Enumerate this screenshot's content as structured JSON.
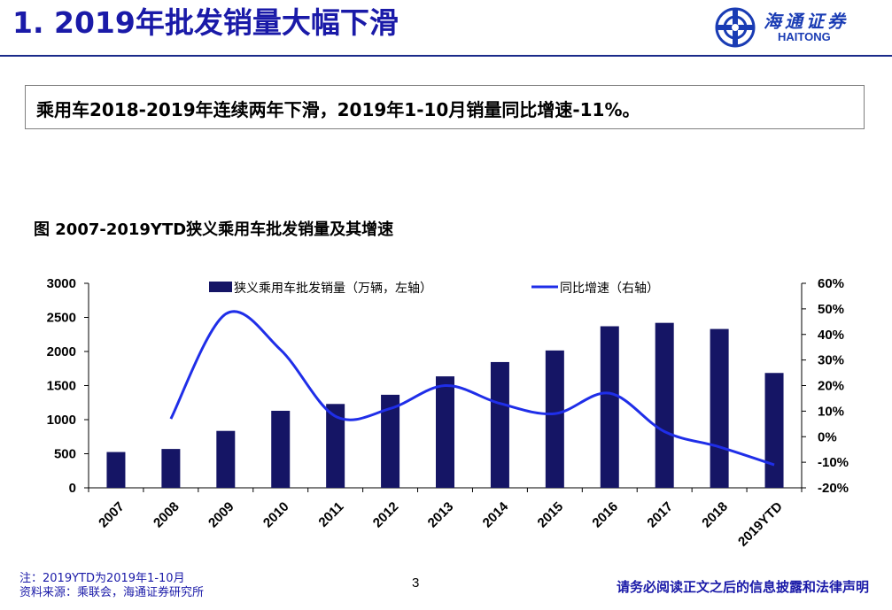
{
  "slide": {
    "title": "1. 2019年批发销量大幅下滑",
    "summary": "乘用车2018-2019年连续两年下滑，2019年1-10月销量同比增速-11%。",
    "figure_caption": "图 2007-2019YTD狭义乘用车批发销量及其增速",
    "note": "注：2019YTD为2019年1-10月",
    "source": "资料来源：乘联会，海通证券研究所",
    "page_number": "3",
    "disclaimer": "请务必阅读正文之后的信息披露和法律声明"
  },
  "logo": {
    "cn": "海通证券",
    "en": "HAITONG",
    "icon": "haitong-logo-icon"
  },
  "colors": {
    "title": "#1a1aa8",
    "bar": "#151565",
    "line": "#1f2ee8",
    "rule": "#1a2a8a"
  },
  "chart_data": {
    "type": "bar",
    "categories": [
      "2007",
      "2008",
      "2009",
      "2010",
      "2011",
      "2012",
      "2013",
      "2014",
      "2015",
      "2016",
      "2017",
      "2018",
      "2019YTD"
    ],
    "series": [
      {
        "name": "狭义乘用车批发销量（万辆，左轴）",
        "type": "bar",
        "axis": "left",
        "values": [
          525,
          570,
          835,
          1130,
          1230,
          1365,
          1635,
          1845,
          2015,
          2370,
          2420,
          2330,
          1685
        ]
      },
      {
        "name": "同比增速（右轴）",
        "type": "line",
        "axis": "right",
        "values": [
          null,
          0.07,
          0.48,
          0.34,
          0.08,
          0.11,
          0.2,
          0.13,
          0.09,
          0.17,
          0.02,
          -0.04,
          -0.11
        ]
      }
    ],
    "ylim_left": [
      0,
      3000
    ],
    "yticks_left": [
      "0",
      "500",
      "1000",
      "1500",
      "2000",
      "2500",
      "3000"
    ],
    "ylim_right": [
      -0.2,
      0.6
    ],
    "yticks_right": [
      "-20%",
      "-10%",
      "0%",
      "10%",
      "20%",
      "30%",
      "40%",
      "50%",
      "60%"
    ],
    "legend_position": "top",
    "grid": false
  }
}
